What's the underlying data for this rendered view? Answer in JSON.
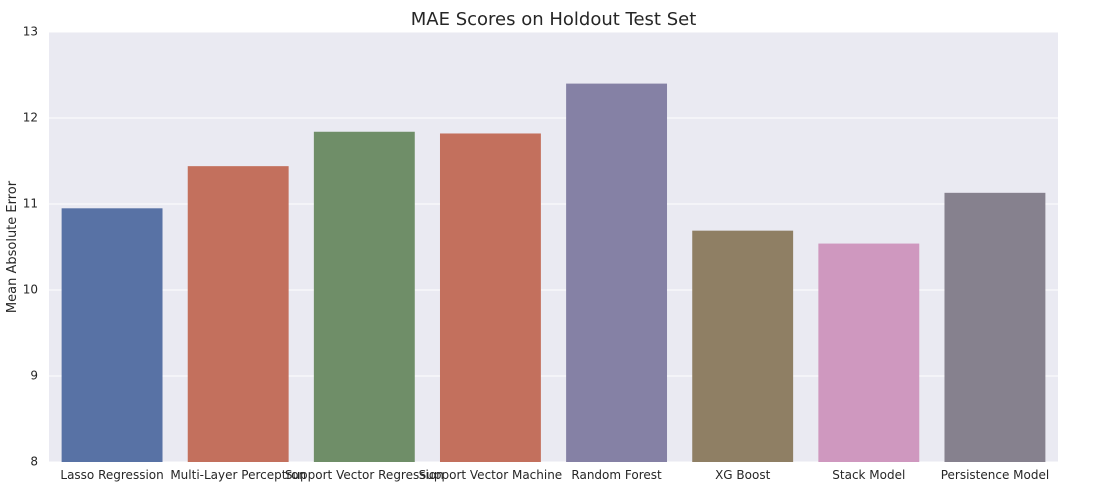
{
  "chart_data": {
    "type": "bar",
    "title": "MAE Scores on Holdout Test Set",
    "xlabel": "",
    "ylabel": "Mean Absolute Error",
    "categories": [
      "Lasso Regression",
      "Multi-Layer Perceptron",
      "Support Vector Regression",
      "Support Vector Machine",
      "Random Forest",
      "XG Boost",
      "Stack Model",
      "Persistence Model"
    ],
    "values": [
      10.95,
      11.44,
      11.84,
      11.82,
      12.4,
      10.69,
      10.54,
      11.13
    ],
    "ylim": [
      8,
      13
    ],
    "yticks": [
      8,
      9,
      10,
      11,
      12,
      13
    ],
    "grid": true,
    "colors": [
      "#5872a5",
      "#c3705d",
      "#6f8e68",
      "#c3705d",
      "#8581a5",
      "#8f7f64",
      "#cf98bf",
      "#86818e"
    ],
    "background": "#eaeaf2",
    "grid_color": "#ffffff"
  }
}
